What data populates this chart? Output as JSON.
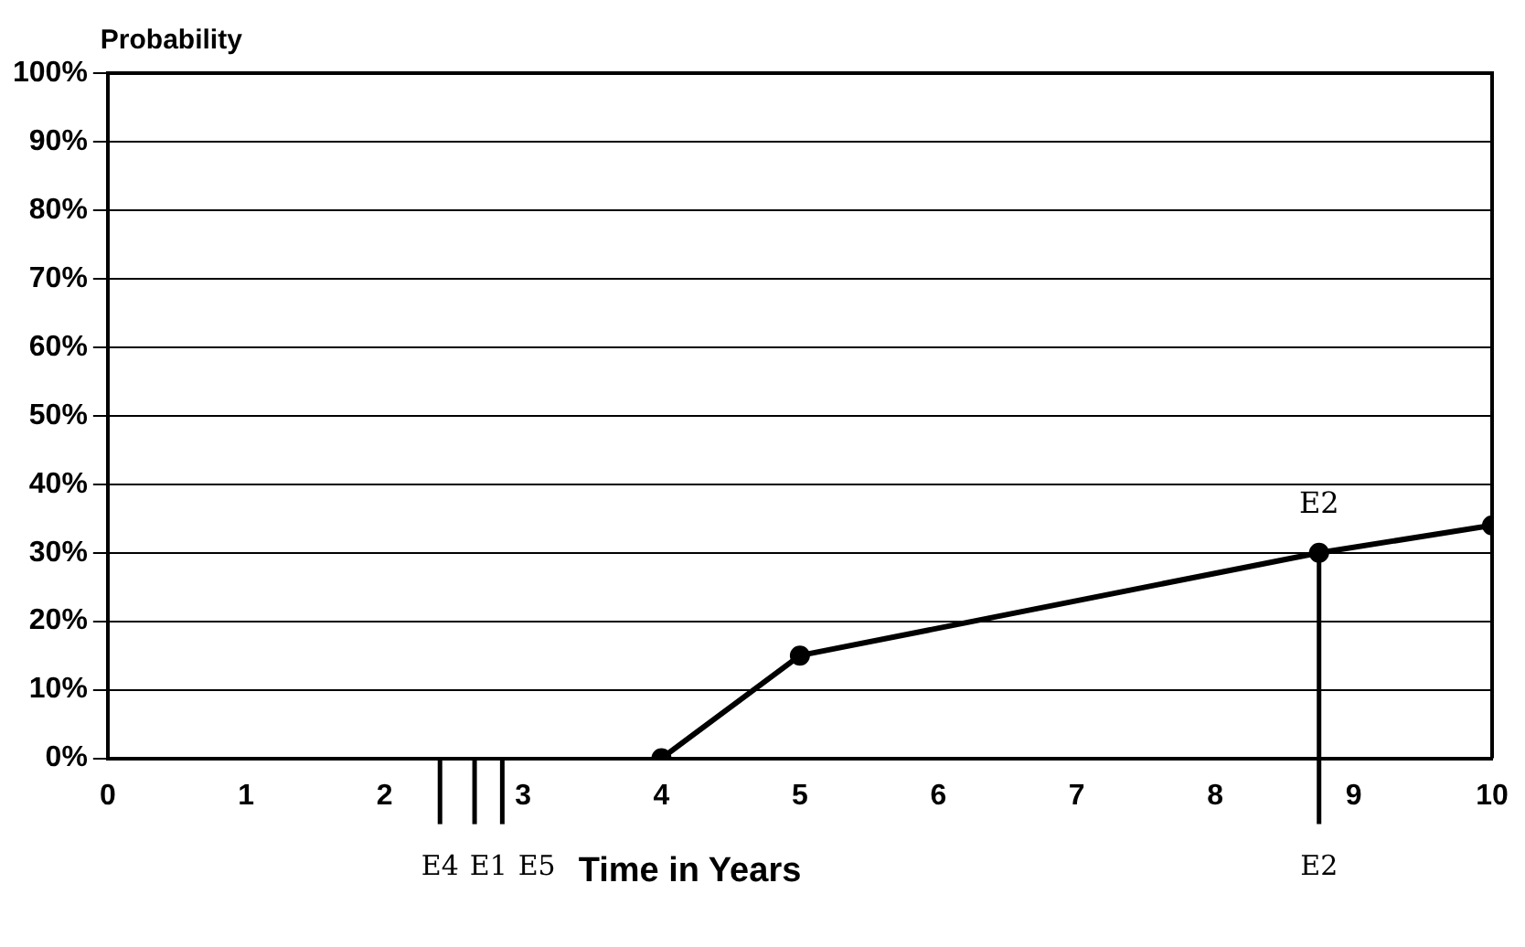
{
  "chart_data": {
    "type": "line",
    "ylabel": "Probability",
    "xlabel": "Time in Years",
    "x": [
      4,
      5,
      8.75,
      10
    ],
    "series": [
      {
        "color": "#000000",
        "values": [
          0,
          15,
          30,
          34
        ]
      }
    ],
    "xlim": [
      0,
      10
    ],
    "xticks": [
      0,
      1,
      2,
      3,
      4,
      5,
      6,
      7,
      8,
      9,
      10
    ],
    "ylim": [
      0,
      100
    ],
    "yticks": [
      {
        "value": 0,
        "label": "0%"
      },
      {
        "value": 10,
        "label": "10%"
      },
      {
        "value": 20,
        "label": "20%"
      },
      {
        "value": 30,
        "label": "30%"
      },
      {
        "value": 40,
        "label": "40%"
      },
      {
        "value": 50,
        "label": "50%"
      },
      {
        "value": 60,
        "label": "60%"
      },
      {
        "value": 70,
        "label": "70%"
      },
      {
        "value": 80,
        "label": "80%"
      },
      {
        "value": 90,
        "label": "90%"
      },
      {
        "value": 100,
        "label": "100%"
      }
    ],
    "grid": "y",
    "legend": false,
    "marker": "circle",
    "line_style": "solid",
    "ref_lines": [
      {
        "axis": "x",
        "value": 2.4,
        "label": "E4"
      },
      {
        "axis": "x",
        "value": 2.65,
        "label": "E1"
      },
      {
        "axis": "x",
        "value": 2.85,
        "label": "E5"
      },
      {
        "axis": "x",
        "value": 8.75,
        "label": "E2"
      }
    ],
    "annotations": [
      {
        "text": "E2",
        "x": 8.75,
        "y": 30
      }
    ]
  }
}
